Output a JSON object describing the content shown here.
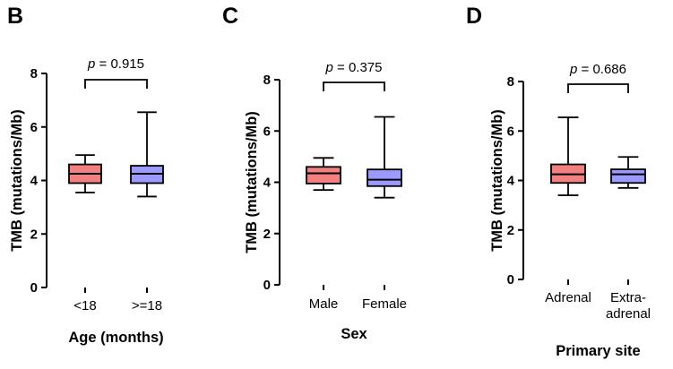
{
  "colors": {
    "group1": "#f28080",
    "group2": "#9b9bff"
  },
  "chart_data": [
    {
      "type": "box",
      "panel": "B",
      "ylabel": "TMB (mutations/Mb)",
      "xlabel": "Age (months)",
      "ylim": [
        0,
        8
      ],
      "yticks": [
        "0",
        "2",
        "4",
        "6",
        "8"
      ],
      "categories": [
        "<18",
        ">=18"
      ],
      "boxes": [
        {
          "min": 3.55,
          "q1": 3.9,
          "median": 4.25,
          "q3": 4.6,
          "max": 4.95
        },
        {
          "min": 3.4,
          "q1": 3.9,
          "median": 4.25,
          "q3": 4.55,
          "max": 6.55
        }
      ],
      "annotation_prefix": "p",
      "annotation_value": " = 0.915"
    },
    {
      "type": "box",
      "panel": "C",
      "ylabel": "TMB (mutations/Mb)",
      "xlabel": "Sex",
      "ylim": [
        0,
        8
      ],
      "yticks": [
        "0",
        "2",
        "4",
        "6",
        "8"
      ],
      "categories": [
        "Male",
        "Female"
      ],
      "boxes": [
        {
          "min": 3.7,
          "q1": 3.95,
          "median": 4.35,
          "q3": 4.6,
          "max": 4.95
        },
        {
          "min": 3.4,
          "q1": 3.85,
          "median": 4.1,
          "q3": 4.5,
          "max": 6.55
        }
      ],
      "annotation_prefix": "p",
      "annotation_value": " = 0.375"
    },
    {
      "type": "box",
      "panel": "D",
      "ylabel": "TMB (mutations/Mb)",
      "xlabel": "Primary site",
      "ylim": [
        0,
        8
      ],
      "yticks": [
        "0",
        "2",
        "4",
        "6",
        "8"
      ],
      "categories": [
        "Adrenal",
        "Extra-\nadrenal"
      ],
      "boxes": [
        {
          "min": 3.4,
          "q1": 3.9,
          "median": 4.25,
          "q3": 4.65,
          "max": 6.55
        },
        {
          "min": 3.7,
          "q1": 3.9,
          "median": 4.25,
          "q3": 4.45,
          "max": 4.95
        }
      ],
      "annotation_prefix": "p",
      "annotation_value": " = 0.686"
    }
  ]
}
